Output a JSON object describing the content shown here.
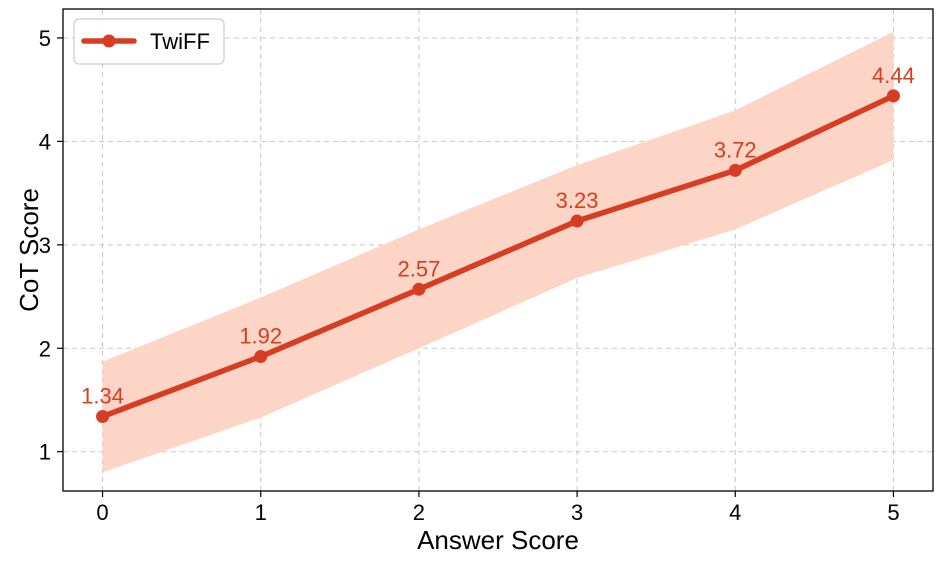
{
  "chart_data": {
    "type": "line",
    "title": "",
    "xlabel": "Answer Score",
    "ylabel": "CoT Score",
    "x": [
      0,
      1,
      2,
      3,
      4,
      5
    ],
    "xticks": [
      "0",
      "1",
      "2",
      "3",
      "4",
      "5"
    ],
    "yticks": [
      "1",
      "2",
      "3",
      "4",
      "5"
    ],
    "xlim": [
      -0.25,
      5.25
    ],
    "ylim": [
      0.62,
      5.28
    ],
    "grid": true,
    "legend_position": "top-left",
    "series": [
      {
        "name": "TwiFF",
        "values": [
          1.34,
          1.92,
          2.57,
          3.23,
          3.72,
          4.44
        ],
        "labels": [
          "1.34",
          "1.92",
          "2.57",
          "3.23",
          "3.72",
          "4.44"
        ],
        "band_upper": [
          1.87,
          2.49,
          3.15,
          3.77,
          4.3,
          5.06
        ],
        "band_lower": [
          0.8,
          1.33,
          2.0,
          2.68,
          3.15,
          3.82
        ],
        "color": "#d63d22",
        "band_color": "#fdd5c6"
      }
    ]
  }
}
